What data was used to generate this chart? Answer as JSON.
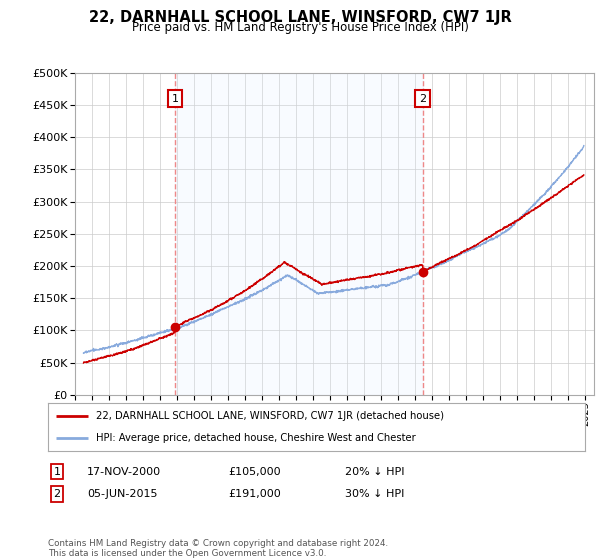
{
  "title": "22, DARNHALL SCHOOL LANE, WINSFORD, CW7 1JR",
  "subtitle": "Price paid vs. HM Land Registry's House Price Index (HPI)",
  "ylim": [
    0,
    500000
  ],
  "xlim_start": 1995.3,
  "xlim_end": 2025.5,
  "sale1_x": 2000.88,
  "sale1_y": 105000,
  "sale1_label": "1",
  "sale2_x": 2015.43,
  "sale2_y": 191000,
  "sale2_label": "2",
  "sale_color": "#cc0000",
  "hpi_color": "#88aadd",
  "shade_color": "#ddeeff",
  "vline_color": "#ee8888",
  "background_color": "#ffffff",
  "grid_color": "#cccccc",
  "legend_line1": "22, DARNHALL SCHOOL LANE, WINSFORD, CW7 1JR (detached house)",
  "legend_line2": "HPI: Average price, detached house, Cheshire West and Chester",
  "footnote": "Contains HM Land Registry data © Crown copyright and database right 2024.\nThis data is licensed under the Open Government Licence v3.0."
}
